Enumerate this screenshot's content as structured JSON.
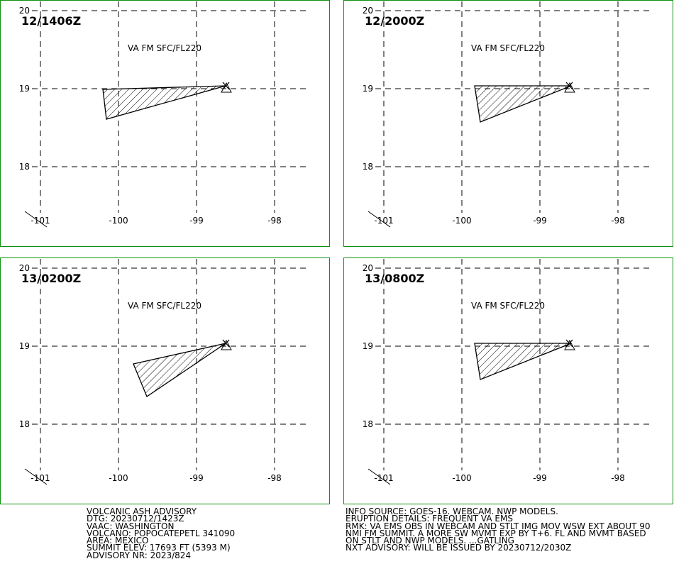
{
  "panels": [
    {
      "time": "12/1406Z",
      "level": "VA FM SFC/FL220"
    },
    {
      "time": "12/2000Z",
      "level": "VA FM SFC/FL220"
    },
    {
      "time": "13/0200Z",
      "level": "VA FM SFC/FL220"
    },
    {
      "time": "13/0800Z",
      "level": "VA FM SFC/FL220"
    }
  ],
  "grid": {
    "lat": [
      20,
      19,
      18
    ],
    "lon": [
      -101,
      -100,
      -99,
      -98
    ]
  },
  "advisory": {
    "left": [
      "VOLCANIC ASH ADVISORY",
      "DTG: 20230712/1423Z",
      "VAAC: WASHINGTON",
      "VOLCANO: POPOCATEPETL 341090",
      "AREA: MEXICO",
      "SUMMIT ELEV: 17693 FT (5393 M)",
      "ADVISORY NR: 2023/824"
    ],
    "right": [
      "INFO SOURCE: GOES-16. WEBCAM. NWP MODELS.",
      "ERUPTION DETAILS: FREQUENT VA EMS",
      "RMK: VA EMS OBS IN WEBCAM AND STLT IMG MOV WSW EXT ABOUT 90",
      "NMI FM SUMMIT. A MORE SW MVMT EXP BY T+6. FL AND MVMT BASED",
      "ON STLT AND NWP MODELS. ...GATLING",
      "NXT ADVISORY: WILL BE ISSUED BY 20230712/2030Z"
    ]
  }
}
